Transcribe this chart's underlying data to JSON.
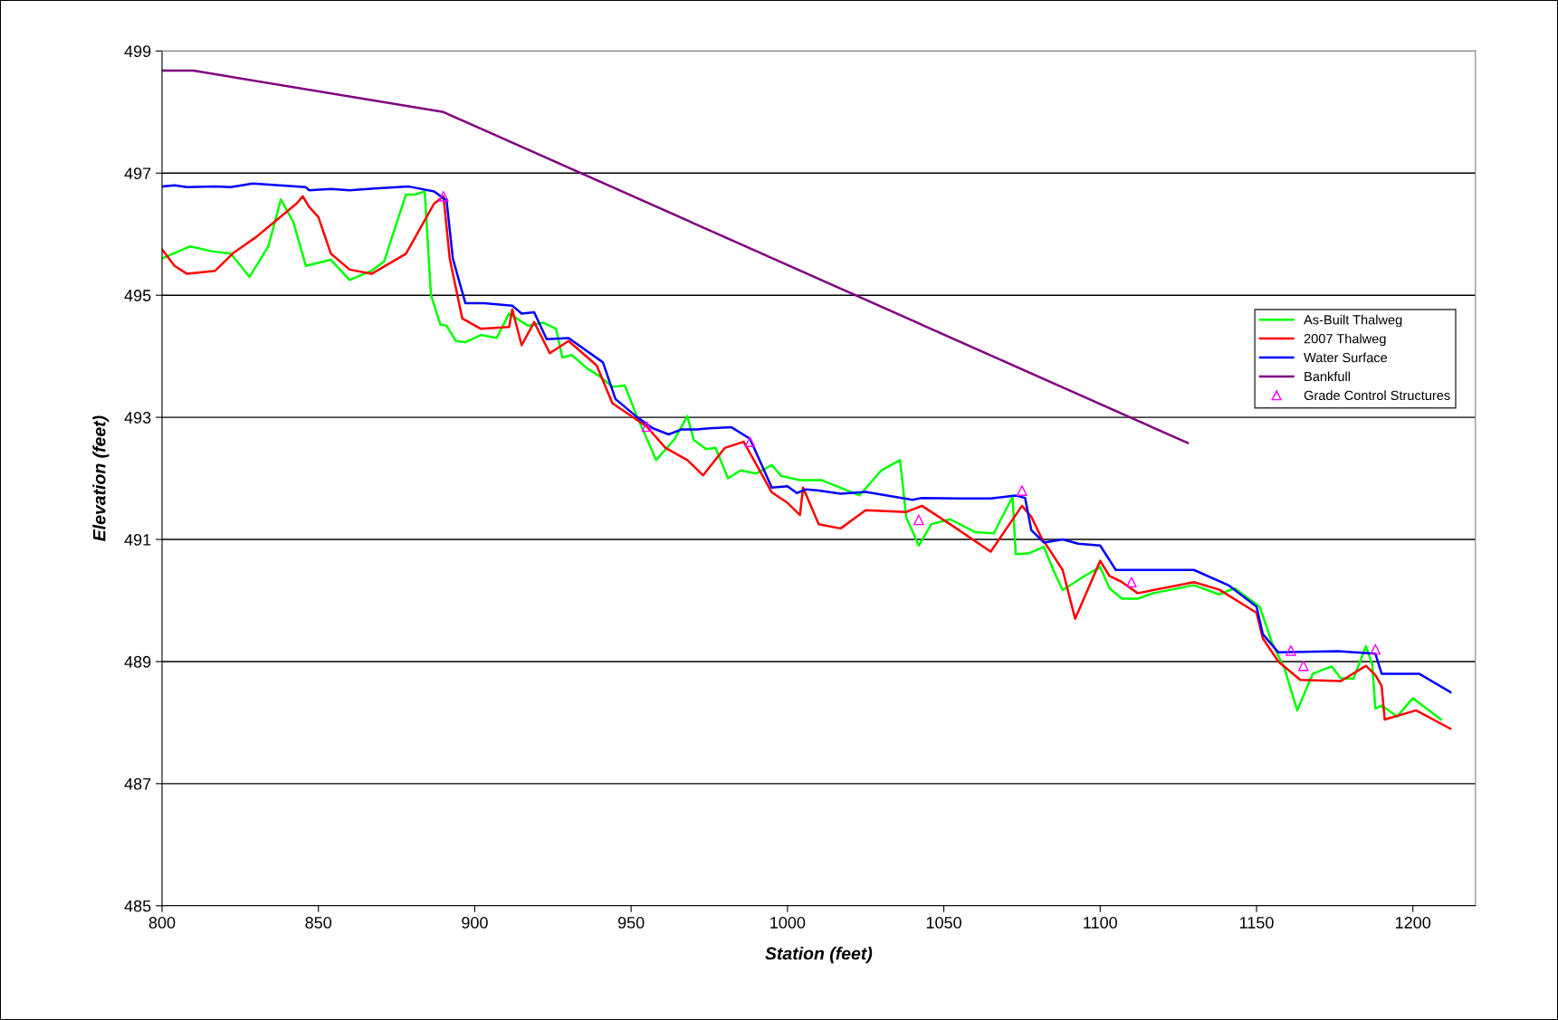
{
  "chart_data": {
    "type": "line",
    "xlabel": "Station (feet)",
    "ylabel": "Elevation (feet)",
    "xlim": [
      800,
      1220
    ],
    "xticks": [
      800,
      850,
      900,
      950,
      1000,
      1050,
      1100,
      1150,
      1200
    ],
    "ylim": [
      485,
      499
    ],
    "yticks": [
      485,
      487,
      489,
      491,
      493,
      495,
      497,
      499
    ],
    "grid": "y",
    "legend": "right",
    "series": [
      {
        "name": "As-Built Thalweg",
        "color": "#00ff00",
        "x": [
          800,
          809,
          816,
          822,
          828,
          834,
          838,
          842,
          846,
          854,
          860,
          867,
          871,
          878,
          881,
          884,
          886,
          889,
          891,
          894,
          897,
          902,
          907,
          911,
          917,
          922,
          926,
          928,
          931,
          936,
          940,
          944,
          948,
          952,
          958,
          964,
          968,
          970,
          974,
          977,
          981,
          985,
          990,
          995,
          998,
          1004,
          1011,
          1023,
          1030,
          1036,
          1038,
          1042,
          1046,
          1052,
          1060,
          1066,
          1072,
          1073,
          1077,
          1082,
          1085,
          1088,
          1095,
          1100,
          1103,
          1107,
          1112,
          1117,
          1130,
          1138,
          1143,
          1151,
          1155,
          1159,
          1163,
          1168,
          1174,
          1177,
          1181,
          1185,
          1187,
          1188,
          1190,
          1195,
          1200,
          1209
        ],
        "values": [
          495.6,
          495.8,
          495.72,
          495.68,
          495.3,
          495.8,
          496.57,
          496.2,
          495.48,
          495.58,
          495.25,
          495.4,
          495.55,
          496.65,
          496.65,
          496.7,
          495.0,
          494.52,
          494.5,
          494.25,
          494.23,
          494.35,
          494.3,
          494.7,
          494.5,
          494.55,
          494.45,
          493.98,
          494.02,
          493.8,
          493.67,
          493.5,
          493.52,
          493.0,
          492.3,
          492.65,
          493.02,
          492.63,
          492.48,
          492.5,
          492.0,
          492.13,
          492.08,
          492.22,
          492.04,
          491.97,
          491.97,
          491.72,
          492.13,
          492.3,
          491.36,
          490.9,
          491.25,
          491.33,
          491.12,
          491.1,
          491.7,
          490.76,
          490.77,
          490.88,
          490.5,
          490.17,
          490.4,
          490.55,
          490.2,
          490.03,
          490.03,
          490.12,
          490.25,
          490.1,
          490.2,
          489.9,
          489.3,
          488.88,
          488.2,
          488.8,
          488.92,
          488.72,
          488.72,
          489.25,
          488.95,
          488.23,
          488.28,
          488.1,
          488.4,
          488.05
        ]
      },
      {
        "name": "2007 Thalweg",
        "color": "#ff0000",
        "x": [
          800,
          804,
          808,
          817,
          823,
          830,
          843,
          845,
          847,
          850,
          854,
          860,
          867,
          878,
          887,
          890,
          892,
          896,
          902,
          911,
          912,
          915,
          919,
          924,
          930,
          939,
          944,
          955,
          961,
          968,
          973,
          980,
          986,
          995,
          1000,
          1004,
          1005,
          1010,
          1017,
          1025,
          1038,
          1043,
          1052,
          1065,
          1075,
          1078,
          1081,
          1088,
          1092,
          1100,
          1103,
          1107,
          1112,
          1130,
          1138,
          1150,
          1152,
          1157,
          1164,
          1177,
          1185,
          1188,
          1190,
          1191,
          1201,
          1212
        ],
        "values": [
          495.75,
          495.48,
          495.35,
          495.4,
          495.7,
          495.95,
          496.5,
          496.62,
          496.45,
          496.28,
          495.68,
          495.42,
          495.35,
          495.68,
          496.5,
          496.62,
          495.6,
          494.62,
          494.45,
          494.48,
          494.77,
          494.18,
          494.56,
          494.05,
          494.25,
          493.85,
          493.23,
          492.85,
          492.5,
          492.3,
          492.05,
          492.5,
          492.6,
          491.77,
          491.6,
          491.4,
          491.85,
          491.25,
          491.18,
          491.48,
          491.45,
          491.55,
          491.25,
          490.8,
          491.55,
          491.37,
          491.05,
          490.5,
          489.7,
          490.65,
          490.4,
          490.3,
          490.12,
          490.3,
          490.18,
          489.8,
          489.38,
          489.0,
          488.7,
          488.68,
          488.93,
          488.78,
          488.6,
          488.05,
          488.2,
          487.9
        ]
      },
      {
        "name": "Water Surface",
        "color": "#0000ff",
        "x": [
          800,
          804,
          808,
          817,
          822,
          829,
          846,
          847,
          854,
          860,
          868,
          879,
          887,
          891,
          893,
          897,
          903,
          912,
          915,
          919,
          923,
          930,
          941,
          945,
          952,
          957,
          962,
          966,
          971,
          975,
          982,
          988,
          995,
          1000,
          1003,
          1006,
          1010,
          1017,
          1025,
          1040,
          1043,
          1055,
          1065,
          1073,
          1076,
          1078,
          1082,
          1088,
          1093,
          1100,
          1105,
          1130,
          1141,
          1150,
          1152,
          1157,
          1176,
          1188,
          1190,
          1202,
          1212
        ],
        "values": [
          496.78,
          496.8,
          496.77,
          496.78,
          496.77,
          496.83,
          496.77,
          496.72,
          496.74,
          496.72,
          496.75,
          496.78,
          496.7,
          496.55,
          495.6,
          494.87,
          494.87,
          494.83,
          494.7,
          494.72,
          494.28,
          494.3,
          493.9,
          493.3,
          493.0,
          492.82,
          492.72,
          492.8,
          492.8,
          492.82,
          492.84,
          492.65,
          491.85,
          491.87,
          491.76,
          491.82,
          491.8,
          491.75,
          491.78,
          491.65,
          491.68,
          491.67,
          491.67,
          491.72,
          491.68,
          491.15,
          490.95,
          491.0,
          490.93,
          490.9,
          490.5,
          490.5,
          490.25,
          489.9,
          489.45,
          489.15,
          489.17,
          489.13,
          488.8,
          488.8,
          488.5
        ]
      },
      {
        "name": "Bankfull",
        "color": "#800080",
        "x": [
          800,
          810,
          890,
          1128
        ],
        "values": [
          498.68,
          498.68,
          498.0,
          492.58
        ]
      },
      {
        "name": "Grade Control Structures",
        "type": "scatter",
        "marker": "triangle",
        "color": "#ff00ff",
        "x": [
          890,
          955,
          988,
          1042,
          1075,
          1110,
          1161,
          1165,
          1188
        ],
        "values": [
          496.62,
          492.85,
          492.6,
          491.32,
          491.8,
          490.3,
          489.18,
          488.93,
          489.2
        ]
      }
    ]
  }
}
